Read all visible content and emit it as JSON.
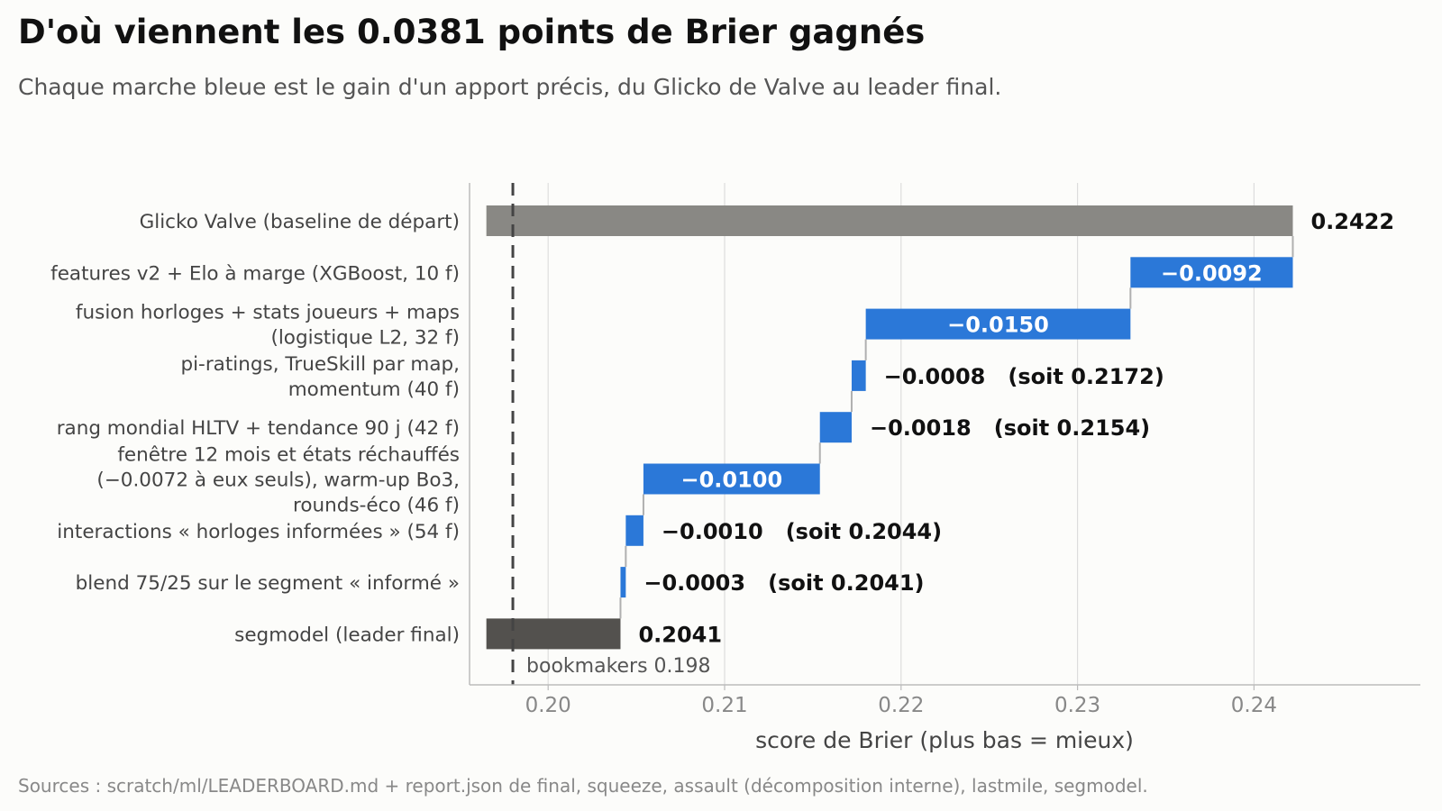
{
  "title": "D'où viennent les 0.0381 points de Brier gagnés",
  "subtitle": "Chaque marche bleue est le gain d'un apport précis, du Glicko de Valve au leader final.",
  "sources": "Sources : scratch/ml/LEADERBOARD.md + report.json de final, squeeze, assault (décomposition interne), lastmile, segmodel.",
  "colors": {
    "baseline": "#898884",
    "step": "#2b78d8",
    "final": "#53514e",
    "grid": "#dddddd",
    "axis": "#bbbbbb"
  },
  "chart_data": {
    "type": "bar",
    "subtype": "waterfall",
    "orientation": "horizontal",
    "xlabel": "score de Brier (plus bas = mieux)",
    "xlim": [
      0.1965,
      0.249
    ],
    "xticks": [
      0.2,
      0.21,
      0.22,
      0.23,
      0.24
    ],
    "xtick_labels": [
      "0.20",
      "0.21",
      "0.22",
      "0.23",
      "0.24"
    ],
    "grid": "vertical",
    "bars": [
      {
        "label_lines": [
          "Glicko Valve (baseline de départ)"
        ],
        "kind": "total",
        "start": 0.1965,
        "end": 0.2422,
        "value_label": "0.2422"
      },
      {
        "label_lines": [
          "features v2 + Elo à marge (XGBoost, 10 f)"
        ],
        "kind": "step",
        "start": 0.233,
        "end": 0.2422,
        "value_label": "−0.0092",
        "label_inside": true
      },
      {
        "label_lines": [
          "fusion horloges + stats joueurs + maps",
          "(logistique L2, 32 f)"
        ],
        "kind": "step",
        "start": 0.218,
        "end": 0.233,
        "value_label": "−0.0150",
        "label_inside": true
      },
      {
        "label_lines": [
          "pi-ratings, TrueSkill par map,",
          "momentum (40 f)"
        ],
        "kind": "step",
        "start": 0.2172,
        "end": 0.218,
        "value_label": "−0.0008   (soit 0.2172)",
        "label_inside": false
      },
      {
        "label_lines": [
          "rang mondial HLTV + tendance 90 j (42 f)"
        ],
        "kind": "step",
        "start": 0.2154,
        "end": 0.2172,
        "value_label": "−0.0018   (soit 0.2154)",
        "label_inside": false
      },
      {
        "label_lines": [
          "fenêtre 12 mois et états réchauffés",
          "(−0.0072 à eux seuls), warm-up Bo3,",
          "rounds-éco (46 f)"
        ],
        "kind": "step",
        "start": 0.2054,
        "end": 0.2154,
        "value_label": "−0.0100",
        "label_inside": true
      },
      {
        "label_lines": [
          "interactions « horloges informées » (54 f)"
        ],
        "kind": "step",
        "start": 0.2044,
        "end": 0.2054,
        "value_label": "−0.0010   (soit 0.2044)",
        "label_inside": false
      },
      {
        "label_lines": [
          "blend 75/25 sur le segment « informé »"
        ],
        "kind": "step",
        "start": 0.2041,
        "end": 0.2044,
        "value_label": "−0.0003   (soit 0.2041)",
        "label_inside": false
      },
      {
        "label_lines": [
          "segmodel (leader final)"
        ],
        "kind": "total_final",
        "start": 0.1965,
        "end": 0.2041,
        "value_label": "0.2041"
      }
    ],
    "reference_line": {
      "value": 0.198,
      "label": "bookmakers 0.198",
      "style": "dashed"
    }
  }
}
